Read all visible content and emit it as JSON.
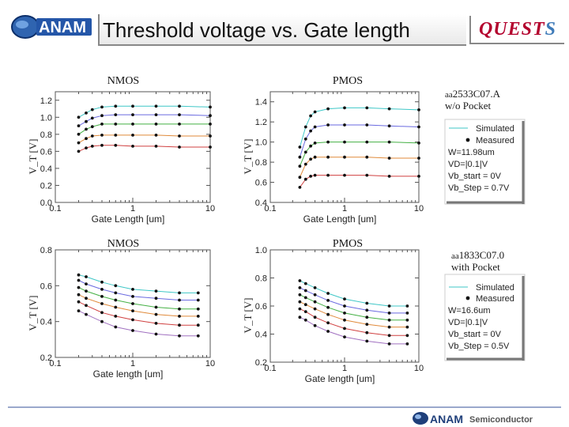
{
  "header": {
    "logo_text": "ANAM",
    "title": "Threshold voltage  vs.  Gate length",
    "quests_part1": "QUEST",
    "quests_part2": "S"
  },
  "footer": {
    "logo_text": "ANAM",
    "logo_sub": "Semiconductor"
  },
  "side_labels": {
    "top_device_prefix": "aa",
    "top_device": "2533C07.A",
    "top_note": "w/o Pocket",
    "bottom_device_prefix": "aa",
    "bottom_device": "1833C07.0",
    "bottom_note": "with Pocket"
  },
  "legend_top": {
    "simulated": "Simulated",
    "measured": "Measured",
    "lines": [
      "W=11.98um",
      "VD=|0.1|V",
      "Vb_start = 0V",
      "Vb_Step = 0.7V"
    ]
  },
  "legend_bottom": {
    "simulated": "Simulated",
    "measured": "Measured",
    "lines": [
      "W=16.6um",
      "VD=|0.1|V",
      "Vb_start = 0V",
      "Vb_Step = 0.5V"
    ]
  },
  "chart_data": [
    {
      "type": "scatter",
      "title": "NMOS",
      "xlabel": "Gate Length [um]",
      "ylabel": "V_T [V]",
      "xscale": "log",
      "xlim": [
        0.1,
        10
      ],
      "ylim": [
        0.0,
        1.3
      ],
      "x_ticks": [
        "0.1",
        "1",
        "10"
      ],
      "y_ticks": [
        "0.0",
        "0.2",
        "0.4",
        "0.6",
        "0.8",
        "1.0",
        "1.2"
      ],
      "x": [
        0.2,
        0.25,
        0.3,
        0.4,
        0.6,
        1,
        2,
        4,
        10
      ],
      "series": [
        {
          "values": [
            1.0,
            1.05,
            1.09,
            1.12,
            1.13,
            1.13,
            1.13,
            1.13,
            1.12
          ]
        },
        {
          "values": [
            0.9,
            0.95,
            0.99,
            1.02,
            1.03,
            1.03,
            1.03,
            1.03,
            1.02
          ]
        },
        {
          "values": [
            0.8,
            0.86,
            0.89,
            0.92,
            0.92,
            0.92,
            0.92,
            0.92,
            0.92
          ]
        },
        {
          "values": [
            0.7,
            0.75,
            0.78,
            0.79,
            0.79,
            0.79,
            0.79,
            0.78,
            0.78
          ]
        },
        {
          "values": [
            0.6,
            0.64,
            0.66,
            0.67,
            0.67,
            0.66,
            0.66,
            0.65,
            0.65
          ]
        }
      ],
      "grid": false
    },
    {
      "type": "scatter",
      "title": "PMOS",
      "xlabel": "Gate Length [um]",
      "ylabel": "V_T [V]",
      "xscale": "log",
      "xlim": [
        0.1,
        10
      ],
      "ylim": [
        0.4,
        1.5
      ],
      "x_ticks": [
        "0.1",
        "1",
        "10"
      ],
      "y_ticks": [
        "0.4",
        "0.6",
        "0.8",
        "1.0",
        "1.2",
        "1.4"
      ],
      "x": [
        0.25,
        0.3,
        0.35,
        0.4,
        0.6,
        1,
        2,
        4,
        10
      ],
      "series": [
        {
          "values": [
            0.95,
            1.15,
            1.26,
            1.3,
            1.33,
            1.34,
            1.34,
            1.33,
            1.32
          ]
        },
        {
          "values": [
            0.85,
            1.03,
            1.11,
            1.15,
            1.17,
            1.17,
            1.17,
            1.16,
            1.15
          ]
        },
        {
          "values": [
            0.76,
            0.9,
            0.96,
            0.99,
            1.0,
            1.0,
            1.0,
            1.0,
            0.99
          ]
        },
        {
          "values": [
            0.65,
            0.78,
            0.83,
            0.85,
            0.85,
            0.85,
            0.85,
            0.84,
            0.84
          ]
        },
        {
          "values": [
            0.55,
            0.63,
            0.66,
            0.67,
            0.67,
            0.67,
            0.67,
            0.66,
            0.66
          ]
        }
      ],
      "grid": false
    },
    {
      "type": "scatter",
      "title": "NMOS",
      "xlabel": "Gate length [um]",
      "ylabel": "V_T [V]",
      "xscale": "log",
      "xlim": [
        0.1,
        10
      ],
      "ylim": [
        0.2,
        0.8
      ],
      "x_ticks": [
        "0.1",
        "1",
        "10"
      ],
      "y_ticks": [
        "0.2",
        "0.4",
        "0.6",
        "0.8"
      ],
      "x": [
        0.2,
        0.25,
        0.4,
        0.6,
        1,
        2,
        4,
        7
      ],
      "series": [
        {
          "values": [
            0.66,
            0.65,
            0.62,
            0.6,
            0.58,
            0.57,
            0.56,
            0.56
          ]
        },
        {
          "values": [
            0.63,
            0.61,
            0.58,
            0.56,
            0.54,
            0.53,
            0.52,
            0.52
          ]
        },
        {
          "values": [
            0.59,
            0.57,
            0.54,
            0.52,
            0.5,
            0.48,
            0.47,
            0.47
          ]
        },
        {
          "values": [
            0.55,
            0.53,
            0.5,
            0.48,
            0.46,
            0.44,
            0.43,
            0.43
          ]
        },
        {
          "values": [
            0.51,
            0.49,
            0.45,
            0.43,
            0.41,
            0.39,
            0.38,
            0.38
          ]
        },
        {
          "values": [
            0.46,
            0.44,
            0.4,
            0.37,
            0.35,
            0.33,
            0.32,
            0.32
          ]
        }
      ],
      "grid": false
    },
    {
      "type": "scatter",
      "title": "PMOS",
      "xlabel": "Gate length [um]",
      "ylabel": "V_T [V]",
      "xscale": "log",
      "xlim": [
        0.1,
        10
      ],
      "ylim": [
        0.2,
        1.0
      ],
      "x_ticks": [
        "0.1",
        "1",
        "10"
      ],
      "y_ticks": [
        "0.2",
        "0.4",
        "0.6",
        "0.8",
        "1.0"
      ],
      "x": [
        0.25,
        0.3,
        0.4,
        0.6,
        1,
        2,
        4,
        7
      ],
      "series": [
        {
          "values": [
            0.78,
            0.76,
            0.73,
            0.69,
            0.65,
            0.62,
            0.6,
            0.6
          ]
        },
        {
          "values": [
            0.73,
            0.71,
            0.68,
            0.64,
            0.6,
            0.57,
            0.55,
            0.55
          ]
        },
        {
          "values": [
            0.68,
            0.66,
            0.63,
            0.59,
            0.55,
            0.52,
            0.5,
            0.5
          ]
        },
        {
          "values": [
            0.63,
            0.61,
            0.58,
            0.54,
            0.5,
            0.47,
            0.45,
            0.45
          ]
        },
        {
          "values": [
            0.58,
            0.56,
            0.52,
            0.48,
            0.44,
            0.41,
            0.39,
            0.39
          ]
        },
        {
          "values": [
            0.52,
            0.5,
            0.46,
            0.42,
            0.38,
            0.35,
            0.33,
            0.33
          ]
        }
      ],
      "grid": false
    }
  ],
  "series_colors": [
    "#3fc7c7",
    "#6a6ae0",
    "#44b044",
    "#e08a3a",
    "#d04040",
    "#a070c0"
  ]
}
